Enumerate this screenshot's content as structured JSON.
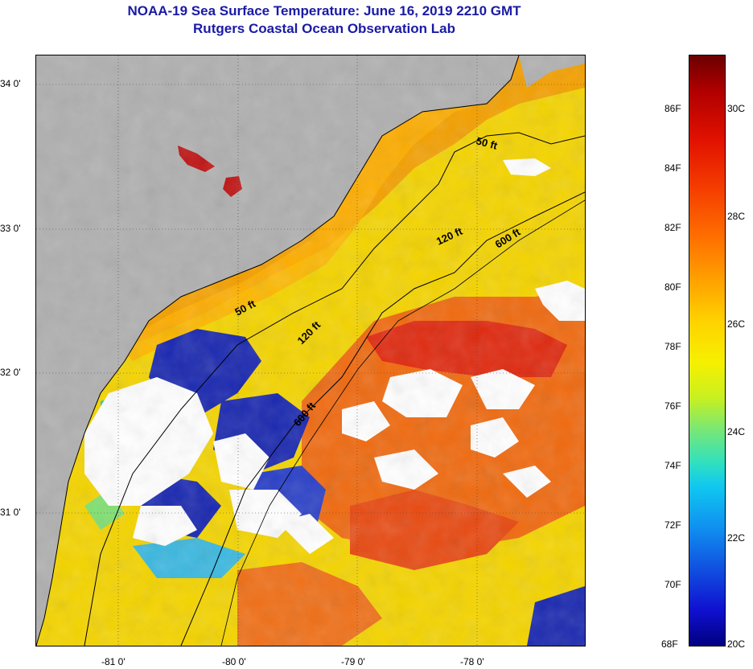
{
  "title": {
    "line1": "NOAA-19 Sea Surface Temperature:  June 16, 2019 2210 GMT",
    "line2": "Rutgers Coastal Ocean Observation Lab"
  },
  "map": {
    "lat_labels": [
      "34 0'",
      "33 0'",
      "32 0'",
      "31 0'"
    ],
    "lon_labels": [
      "-81 0'",
      "-80 0'",
      "-79 0'",
      "-78 0'"
    ],
    "contours": [
      "50 ft",
      "120 ft",
      "600 ft",
      "50 ft",
      "120 ft",
      "600 ft"
    ],
    "colors": {
      "land": "#b0b0b0",
      "cloud": "#ffffff",
      "warm": "#f07018",
      "hot": "#e02810",
      "mid": "#ffc000",
      "cool": "#f0e800",
      "cold": "#1020b0"
    }
  },
  "colorbar": {
    "fahrenheit": [
      "86F",
      "84F",
      "82F",
      "80F",
      "78F",
      "76F",
      "74F",
      "72F",
      "70F",
      "68F"
    ],
    "celsius": [
      "30C",
      "28C",
      "26C",
      "24C",
      "22C",
      "20C"
    ]
  }
}
